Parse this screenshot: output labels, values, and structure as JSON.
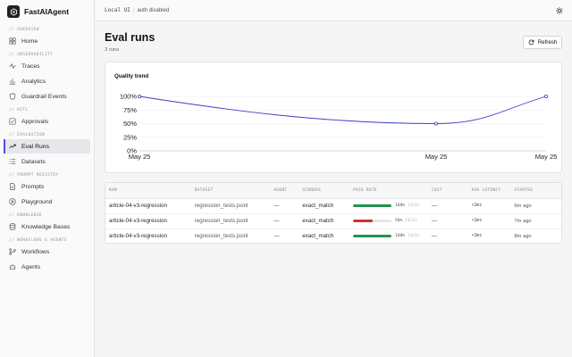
{
  "brand": {
    "name": "FastAIAgent"
  },
  "topbar": {
    "env": "Local UI",
    "separator": "|",
    "auth": "auth disabled"
  },
  "sidebar": {
    "sections": [
      {
        "label": "// Overview",
        "items": [
          {
            "label": "Home",
            "icon": "grid-icon"
          }
        ]
      },
      {
        "label": "// Observability",
        "items": [
          {
            "label": "Traces",
            "icon": "pulse-icon"
          },
          {
            "label": "Analytics",
            "icon": "bar-chart-icon"
          },
          {
            "label": "Guardrail Events",
            "icon": "shield-icon"
          }
        ]
      },
      {
        "label": "// HITL",
        "items": [
          {
            "label": "Approvals",
            "icon": "check-square-icon"
          }
        ]
      },
      {
        "label": "// Evaluation",
        "items": [
          {
            "label": "Eval Runs",
            "icon": "trend-icon",
            "active": true
          },
          {
            "label": "Datasets",
            "icon": "list-icon"
          }
        ]
      },
      {
        "label": "// Prompt Registry",
        "items": [
          {
            "label": "Prompts",
            "icon": "document-icon"
          },
          {
            "label": "Playground",
            "icon": "play-icon"
          }
        ]
      },
      {
        "label": "// Knowledge",
        "items": [
          {
            "label": "Knowledge Bases",
            "icon": "database-icon"
          }
        ]
      },
      {
        "label": "// Workflows & Agents",
        "items": [
          {
            "label": "Workflows",
            "icon": "workflow-icon"
          },
          {
            "label": "Agents",
            "icon": "bot-icon"
          }
        ]
      }
    ]
  },
  "page": {
    "title": "Eval runs",
    "subtitle": "3 runs",
    "refresh_label": "Refresh"
  },
  "chart_data": {
    "type": "line",
    "title": "Quality trend",
    "x": [
      "May 25",
      "May 25",
      "May 25"
    ],
    "series": [
      {
        "values": [
          100,
          50,
          100
        ]
      }
    ],
    "yticks": [
      "100%",
      "75%",
      "50%",
      "25%",
      "0%"
    ],
    "ylim": [
      0,
      100
    ],
    "grid": true,
    "color": "#3b3fc4"
  },
  "table": {
    "columns": [
      "Run",
      "Dataset",
      "Agent",
      "Scorers",
      "Pass rate",
      "Cost",
      "Avg latency",
      "Started"
    ],
    "rows": [
      {
        "run": "article-04-v3-regression",
        "dataset": "regression_tests.jsonl",
        "agent": "—",
        "scorers": "exact_match",
        "pass_pct": "100%",
        "pass_frac": "(1/1)",
        "pass_rate": 1.0,
        "bar_color": "#22934f",
        "cost": "—",
        "latency": "<1ms",
        "started": "6m ago"
      },
      {
        "run": "article-04-v3-regression",
        "dataset": "regression_tests.jsonl",
        "agent": "—",
        "scorers": "exact_match",
        "pass_pct": "50%",
        "pass_frac": "(1/2)",
        "pass_rate": 0.5,
        "bar_color": "#d0312d",
        "cost": "—",
        "latency": "<1ms",
        "started": "7m ago"
      },
      {
        "run": "article-04-v3-regression",
        "dataset": "regression_tests.jsonl",
        "agent": "—",
        "scorers": "exact_match",
        "pass_pct": "100%",
        "pass_frac": "(1/1)",
        "pass_rate": 1.0,
        "bar_color": "#22934f",
        "cost": "—",
        "latency": "<1ms",
        "started": "8m ago"
      }
    ]
  }
}
